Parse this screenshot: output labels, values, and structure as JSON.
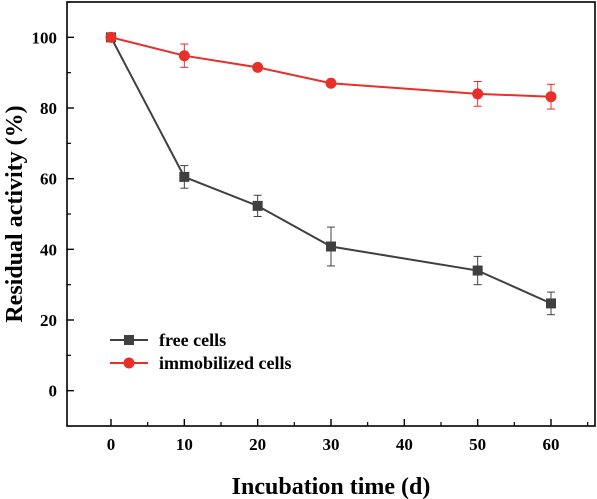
{
  "chart_data": {
    "type": "line",
    "xlabel": "Incubation time (d)",
    "ylabel": "Residual activity (%)",
    "xlim": [
      -6,
      66
    ],
    "ylim": [
      -10,
      110
    ],
    "xticks": [
      0,
      10,
      20,
      30,
      40,
      50,
      60
    ],
    "yticks": [
      0,
      20,
      40,
      60,
      80,
      100
    ],
    "grid": false,
    "legend_position": "bottom-left",
    "series": [
      {
        "name": "free cells",
        "color": "#404040",
        "marker": "square",
        "x": [
          0,
          10,
          20,
          30,
          50,
          60
        ],
        "y": [
          100,
          60.5,
          52.3,
          40.8,
          34.0,
          24.7
        ],
        "error": [
          0.5,
          3.2,
          3.0,
          5.5,
          4.0,
          3.2
        ]
      },
      {
        "name": "immobilized cells",
        "color": "#e8302a",
        "marker": "circle",
        "x": [
          0,
          10,
          20,
          30,
          50,
          60
        ],
        "y": [
          100,
          94.8,
          91.5,
          87.0,
          84.0,
          83.2
        ],
        "error": [
          0.5,
          3.3,
          0.8,
          0.8,
          3.5,
          3.5
        ]
      }
    ]
  }
}
